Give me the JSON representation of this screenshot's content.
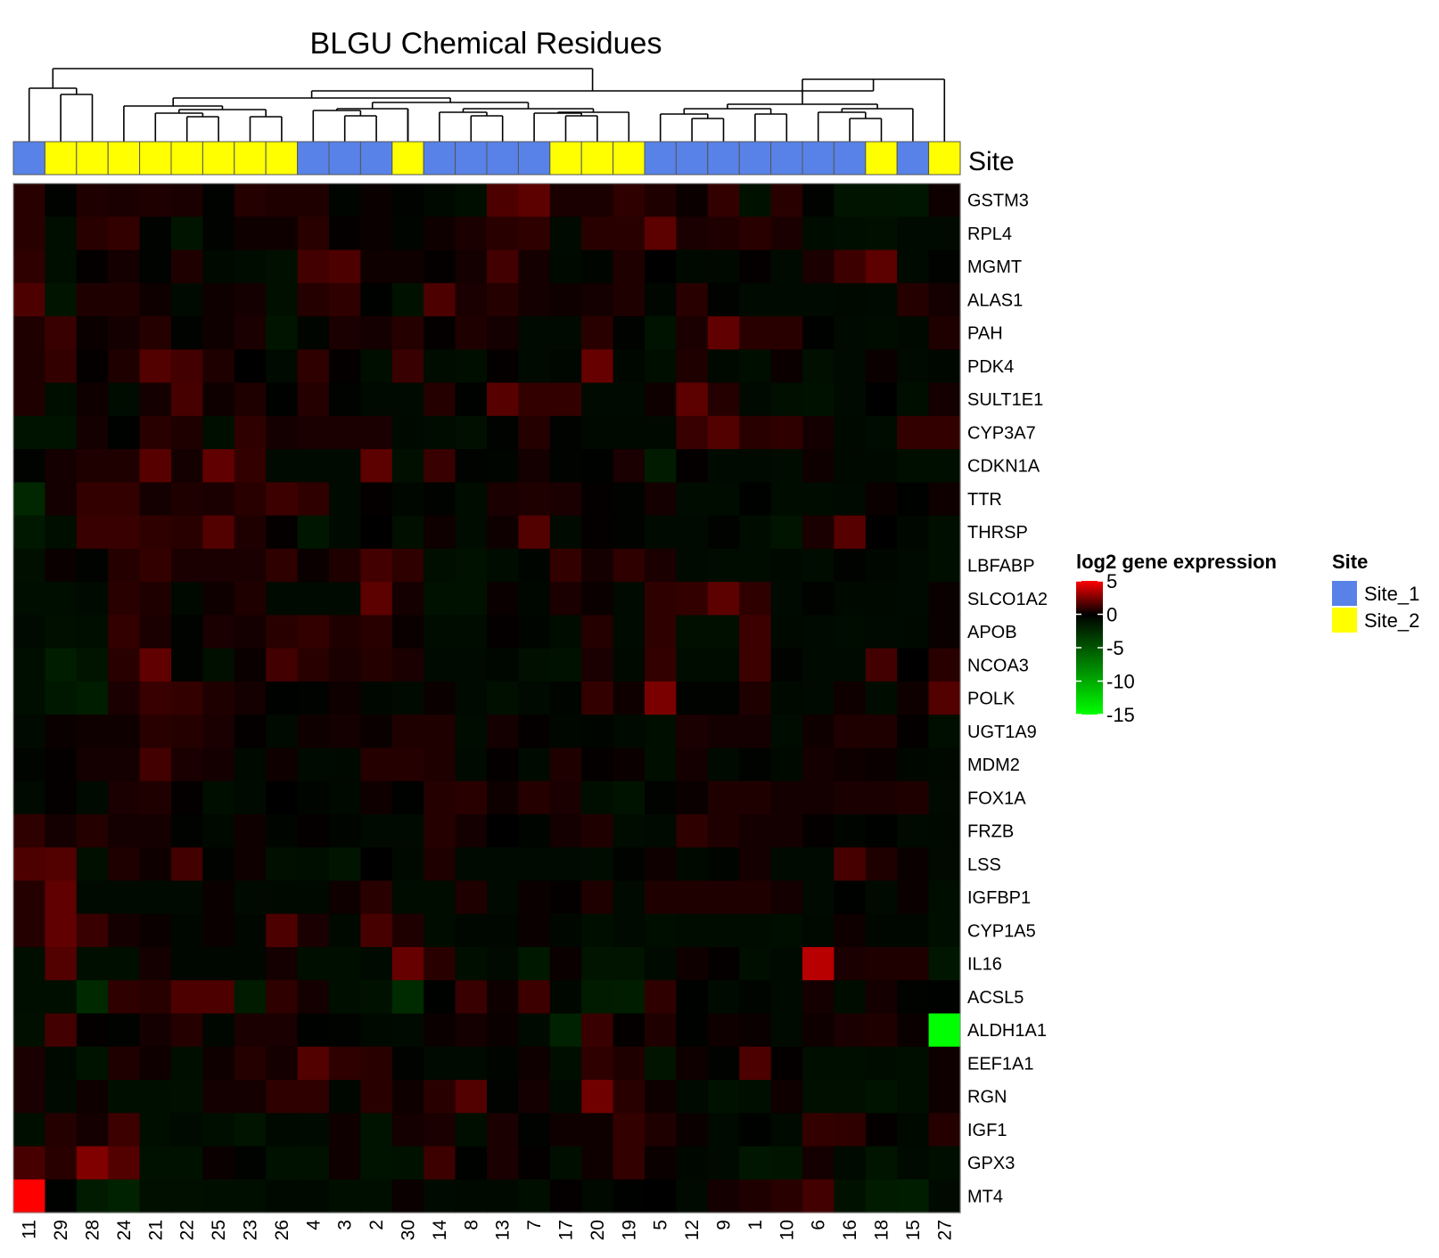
{
  "chart_data": {
    "type": "heatmap",
    "title": "BLGU Chemical Residues",
    "columns": [
      "11",
      "29",
      "28",
      "24",
      "21",
      "22",
      "25",
      "23",
      "26",
      "4",
      "3",
      "2",
      "30",
      "14",
      "8",
      "13",
      "7",
      "17",
      "20",
      "19",
      "5",
      "12",
      "9",
      "1",
      "10",
      "6",
      "16",
      "18",
      "15",
      "27"
    ],
    "column_site": [
      "Site_1",
      "Site_2",
      "Site_2",
      "Site_2",
      "Site_2",
      "Site_2",
      "Site_2",
      "Site_2",
      "Site_2",
      "Site_1",
      "Site_1",
      "Site_1",
      "Site_2",
      "Site_1",
      "Site_1",
      "Site_1",
      "Site_1",
      "Site_2",
      "Site_2",
      "Site_2",
      "Site_1",
      "Site_1",
      "Site_1",
      "Site_1",
      "Site_1",
      "Site_1",
      "Site_1",
      "Site_2",
      "Site_1",
      "Site_2"
    ],
    "rows": [
      "GSTM3",
      "RPL4",
      "MGMT",
      "ALAS1",
      "PAH",
      "PDK4",
      "SULT1E1",
      "CYP3A7",
      "CDKN1A",
      "TTR",
      "THRSP",
      "LBFABP",
      "SLCO1A2",
      "APOB",
      "NCOA3",
      "POLK",
      "UGT1A9",
      "MDM2",
      "FOX1A",
      "FRZB",
      "LSS",
      "IGFBP1",
      "CYP1A5",
      "IL16",
      "ACSL5",
      "ALDH1A1",
      "EEF1A1",
      "RGN",
      "IGF1",
      "GPX3",
      "MT4"
    ],
    "values": [
      [
        0.8,
        -0.2,
        0.6,
        0.5,
        0.6,
        0.5,
        -0.2,
        0.7,
        0.6,
        0.6,
        -0.3,
        0.2,
        -0.2,
        -0.5,
        -0.8,
        1.5,
        1.8,
        0.5,
        0.5,
        0.9,
        0.6,
        0.2,
        1.0,
        -1.0,
        0.8,
        -0.2,
        -1.2,
        -1.2,
        -1.3,
        0.3
      ],
      [
        0.8,
        -0.8,
        0.8,
        1.0,
        -0.2,
        -1.2,
        -0.2,
        0.3,
        0.3,
        0.8,
        0.1,
        0.2,
        -0.3,
        0.3,
        0.5,
        0.8,
        0.9,
        -0.6,
        0.8,
        0.8,
        1.8,
        0.5,
        0.6,
        0.8,
        0.5,
        -0.7,
        -0.8,
        -0.9,
        -0.6,
        -0.6
      ],
      [
        0.9,
        -0.8,
        0.1,
        0.4,
        -0.2,
        0.6,
        -0.5,
        -0.7,
        -0.9,
        1.3,
        1.5,
        0.3,
        0.3,
        0.1,
        0.4,
        1.3,
        0.4,
        -0.5,
        -0.3,
        0.6,
        0.0,
        -0.5,
        -0.5,
        0.1,
        -0.6,
        0.5,
        1.2,
        1.8,
        -0.6,
        -0.2
      ],
      [
        1.5,
        -1.2,
        0.6,
        0.6,
        0.3,
        -0.6,
        0.3,
        0.4,
        -0.9,
        0.7,
        0.9,
        -0.1,
        -1.0,
        1.5,
        0.5,
        0.7,
        0.4,
        0.3,
        0.4,
        0.6,
        -0.4,
        0.8,
        -0.2,
        -0.6,
        -0.6,
        -0.6,
        -0.5,
        -0.6,
        0.7,
        0.4
      ],
      [
        0.6,
        1.1,
        0.2,
        0.4,
        0.7,
        -0.2,
        0.3,
        0.5,
        -1.2,
        -0.3,
        0.5,
        0.4,
        0.7,
        0.1,
        0.6,
        0.4,
        -0.6,
        -0.6,
        0.8,
        -0.2,
        -1.1,
        0.5,
        1.9,
        0.8,
        0.8,
        -0.1,
        -0.6,
        -0.7,
        -0.5,
        0.6
      ],
      [
        0.6,
        1.0,
        0.1,
        0.6,
        1.6,
        1.3,
        0.6,
        0.0,
        -0.6,
        0.9,
        0.1,
        -0.8,
        1.1,
        -0.7,
        -0.8,
        0.1,
        -0.6,
        -0.4,
        2.0,
        -0.4,
        -0.8,
        0.6,
        -0.5,
        -0.8,
        0.2,
        -0.9,
        -0.6,
        0.2,
        -0.6,
        -0.4
      ],
      [
        0.6,
        -0.8,
        0.3,
        -0.7,
        0.4,
        1.4,
        0.3,
        0.6,
        -0.1,
        0.7,
        -0.2,
        -0.6,
        -0.6,
        0.7,
        -0.1,
        1.7,
        1.0,
        1.0,
        -0.6,
        -0.6,
        0.3,
        1.8,
        0.7,
        -0.6,
        -0.9,
        -1.0,
        -0.6,
        0.0,
        -0.8,
        0.4
      ],
      [
        -1.1,
        -1.1,
        0.4,
        -0.1,
        0.8,
        0.6,
        -0.8,
        0.9,
        0.4,
        0.5,
        0.5,
        0.5,
        -0.5,
        -0.7,
        -0.9,
        -0.2,
        0.7,
        -0.2,
        -0.5,
        -0.5,
        -0.5,
        1.1,
        1.6,
        0.8,
        0.9,
        0.4,
        -0.5,
        -0.7,
        1.0,
        1.0
      ],
      [
        -0.2,
        0.4,
        0.6,
        0.6,
        1.7,
        0.4,
        1.9,
        1.0,
        -0.6,
        -0.6,
        -0.6,
        1.8,
        -0.9,
        1.1,
        -0.2,
        -0.3,
        0.4,
        -0.2,
        -0.1,
        0.5,
        -1.6,
        0.1,
        -0.6,
        -0.6,
        -0.7,
        0.3,
        -0.5,
        -0.5,
        -0.8,
        -0.8
      ],
      [
        -2.3,
        0.4,
        1.0,
        1.0,
        0.4,
        0.6,
        0.5,
        0.8,
        1.2,
        0.9,
        -0.6,
        0.1,
        -0.4,
        -0.2,
        -0.7,
        0.5,
        0.6,
        0.5,
        0.1,
        -0.2,
        0.4,
        -0.7,
        -0.7,
        -0.1,
        -0.7,
        -0.7,
        -0.6,
        0.2,
        -0.1,
        0.3
      ],
      [
        -1.4,
        -0.8,
        1.1,
        1.1,
        0.9,
        0.8,
        1.6,
        0.6,
        0.1,
        -1.3,
        -0.6,
        0.0,
        -0.9,
        0.3,
        -0.7,
        0.3,
        1.6,
        -0.6,
        0.1,
        -0.2,
        -0.6,
        -0.6,
        -0.2,
        -0.7,
        -1.2,
        0.5,
        1.7,
        0.0,
        -0.4,
        -0.8
      ],
      [
        -0.9,
        0.2,
        -0.2,
        0.7,
        1.0,
        0.5,
        0.5,
        0.5,
        0.9,
        0.2,
        0.6,
        1.3,
        0.9,
        -0.8,
        -1.0,
        -0.7,
        -0.3,
        1.0,
        0.4,
        0.9,
        0.5,
        -0.6,
        -0.7,
        -0.7,
        -0.5,
        -0.7,
        -0.2,
        -0.4,
        -0.6,
        -0.8
      ],
      [
        -0.8,
        -0.8,
        -0.6,
        0.8,
        0.6,
        -0.5,
        0.3,
        0.6,
        -0.6,
        -0.6,
        -0.6,
        1.8,
        0.4,
        -1.0,
        -1.0,
        0.2,
        -0.4,
        0.5,
        0.2,
        -0.6,
        0.9,
        1.0,
        1.8,
        0.9,
        -0.6,
        -0.2,
        -0.5,
        -0.5,
        -0.6,
        0.2
      ],
      [
        -0.6,
        -0.9,
        -0.8,
        1.0,
        0.5,
        -0.2,
        0.5,
        0.4,
        0.8,
        1.0,
        0.6,
        0.8,
        0.2,
        -0.7,
        -0.7,
        0.1,
        -0.3,
        -0.7,
        0.7,
        -0.6,
        0.9,
        -0.9,
        -0.9,
        1.2,
        -0.5,
        -0.6,
        -0.7,
        -0.6,
        -0.5,
        0.2
      ],
      [
        -0.8,
        -1.7,
        -1.2,
        0.8,
        1.9,
        -0.2,
        -0.9,
        0.2,
        1.3,
        0.8,
        0.5,
        0.7,
        0.5,
        -0.6,
        -0.6,
        -0.4,
        -0.9,
        -1.0,
        0.5,
        -0.5,
        1.0,
        -0.7,
        -0.7,
        1.2,
        -0.2,
        -0.6,
        -0.6,
        1.3,
        0.0,
        0.8
      ],
      [
        -0.8,
        -1.4,
        -1.7,
        0.5,
        1.1,
        1.0,
        0.6,
        0.4,
        -0.1,
        -0.2,
        0.3,
        -0.4,
        -0.6,
        0.2,
        -0.6,
        -0.9,
        -0.6,
        -0.3,
        1.0,
        0.3,
        2.4,
        -0.2,
        -0.2,
        0.6,
        -0.5,
        -0.6,
        0.3,
        -0.7,
        0.3,
        1.6
      ],
      [
        -0.6,
        0.2,
        0.3,
        0.3,
        0.8,
        0.7,
        0.5,
        0.1,
        -0.6,
        0.3,
        0.4,
        0.2,
        0.6,
        0.6,
        -0.7,
        0.4,
        0.1,
        -0.4,
        -0.3,
        -0.6,
        -0.8,
        0.5,
        0.4,
        0.4,
        -0.7,
        0.3,
        0.6,
        0.6,
        0.1,
        -0.8
      ],
      [
        -0.3,
        0.1,
        0.4,
        0.4,
        1.3,
        0.5,
        0.4,
        -0.5,
        0.3,
        -0.6,
        -0.5,
        0.7,
        0.7,
        0.6,
        -0.6,
        0.1,
        -0.6,
        0.6,
        0.1,
        0.2,
        -0.8,
        0.4,
        -0.6,
        -0.2,
        -0.5,
        0.4,
        0.3,
        0.2,
        -0.4,
        -0.5
      ],
      [
        -0.6,
        0.1,
        -0.6,
        0.5,
        0.6,
        0.1,
        -0.8,
        -0.6,
        0.0,
        -0.3,
        -0.5,
        0.3,
        -0.1,
        0.7,
        0.8,
        0.3,
        0.7,
        0.5,
        -0.8,
        -1.1,
        -0.2,
        0.2,
        0.6,
        0.6,
        0.4,
        0.4,
        0.5,
        0.5,
        0.6,
        -0.6
      ],
      [
        0.9,
        0.4,
        0.7,
        0.4,
        0.4,
        -0.2,
        -0.5,
        0.3,
        -0.3,
        0.1,
        -0.3,
        -0.6,
        -0.6,
        0.7,
        0.4,
        0.0,
        -0.3,
        0.4,
        0.6,
        -0.7,
        -0.6,
        0.9,
        0.6,
        0.4,
        0.4,
        0.1,
        -0.3,
        -0.1,
        -0.6,
        -0.5
      ],
      [
        1.5,
        1.6,
        -0.9,
        0.6,
        0.3,
        1.3,
        -0.2,
        0.3,
        -0.9,
        -0.8,
        -1.2,
        0.0,
        -0.5,
        0.6,
        -0.6,
        -0.6,
        -0.6,
        -0.6,
        -0.7,
        -0.2,
        0.3,
        -0.5,
        -0.3,
        0.4,
        -0.6,
        -0.6,
        1.4,
        0.6,
        0.2,
        -0.6
      ],
      [
        0.7,
        1.9,
        -0.6,
        -0.6,
        -0.6,
        -0.6,
        0.2,
        -0.6,
        -0.5,
        -0.5,
        0.3,
        0.8,
        -0.7,
        -0.7,
        0.6,
        -0.6,
        0.2,
        0.1,
        0.6,
        -0.6,
        0.6,
        0.6,
        0.6,
        0.6,
        0.4,
        -0.6,
        -0.1,
        -0.6,
        0.2,
        -0.8
      ],
      [
        0.7,
        1.9,
        1.1,
        0.4,
        0.2,
        -0.4,
        0.2,
        -0.4,
        1.5,
        0.5,
        -0.5,
        1.4,
        0.6,
        -0.7,
        -0.4,
        -0.4,
        0.2,
        -0.4,
        -0.8,
        -0.6,
        -0.8,
        -0.7,
        -0.7,
        -0.7,
        -0.8,
        -0.5,
        0.3,
        -0.4,
        -0.4,
        -0.8
      ],
      [
        -0.8,
        1.6,
        -0.8,
        -0.8,
        0.4,
        -0.4,
        -0.4,
        -0.4,
        0.4,
        -0.8,
        -0.8,
        -0.6,
        2.0,
        0.8,
        -0.8,
        -0.6,
        -1.4,
        0.2,
        -1.2,
        -1.2,
        -0.6,
        0.3,
        0.1,
        -0.8,
        -0.6,
        3.6,
        0.5,
        0.6,
        0.6,
        -1.3
      ],
      [
        -0.8,
        -0.8,
        -2.4,
        0.9,
        0.8,
        1.5,
        1.5,
        -1.6,
        0.9,
        0.4,
        -0.8,
        -1.0,
        -2.5,
        -0.1,
        1.1,
        0.3,
        1.2,
        -0.4,
        -1.6,
        -1.7,
        0.9,
        -0.1,
        -0.6,
        -0.3,
        -0.6,
        0.4,
        -0.7,
        0.4,
        -0.2,
        -0.1
      ],
      [
        -0.9,
        1.3,
        0.1,
        -0.2,
        0.4,
        0.7,
        -0.4,
        0.5,
        0.5,
        -0.1,
        -0.2,
        -0.5,
        -0.6,
        0.2,
        0.4,
        0.2,
        -0.6,
        -2.0,
        1.1,
        0.1,
        0.6,
        -0.1,
        0.3,
        0.2,
        -0.6,
        0.3,
        0.5,
        0.6,
        0.2,
        -15.0
      ],
      [
        0.5,
        -0.5,
        -1.1,
        0.6,
        0.3,
        -0.8,
        0.3,
        0.7,
        0.4,
        1.6,
        0.9,
        0.8,
        -0.2,
        -0.6,
        -0.6,
        -0.3,
        0.3,
        -0.8,
        0.9,
        0.6,
        -1.2,
        0.3,
        -0.2,
        1.5,
        0.1,
        -0.8,
        -0.8,
        -0.7,
        -0.8,
        0.3
      ],
      [
        0.5,
        -0.6,
        0.3,
        -0.8,
        -0.8,
        -0.9,
        0.4,
        0.4,
        0.9,
        0.9,
        -0.4,
        0.8,
        0.3,
        0.8,
        1.6,
        -0.2,
        0.4,
        -0.6,
        2.2,
        0.8,
        0.3,
        -0.6,
        -1.0,
        -0.8,
        0.3,
        -0.9,
        -0.9,
        -1.1,
        -0.8,
        0.3
      ],
      [
        -0.8,
        0.7,
        0.4,
        1.2,
        -0.8,
        -0.6,
        -0.8,
        -1.2,
        -0.5,
        -0.6,
        0.3,
        -1.1,
        0.4,
        0.5,
        -0.8,
        0.5,
        -0.2,
        0.3,
        0.3,
        1.0,
        0.6,
        0.2,
        -0.6,
        -0.1,
        -0.6,
        1.0,
        0.9,
        0.1,
        -0.5,
        0.7
      ],
      [
        1.4,
        0.8,
        2.5,
        1.6,
        -1.0,
        -1.0,
        0.2,
        -0.2,
        -1.0,
        -1.0,
        0.3,
        -1.1,
        -1.0,
        1.2,
        -0.1,
        0.5,
        0.1,
        -0.8,
        0.3,
        1.0,
        0.2,
        -0.4,
        -0.6,
        -1.3,
        -1.2,
        0.4,
        -0.6,
        -1.2,
        -0.6,
        -0.8
      ],
      [
        5.0,
        -0.1,
        -1.6,
        -2.0,
        -0.9,
        -0.9,
        -0.8,
        -0.8,
        -0.5,
        -0.5,
        -0.8,
        -0.8,
        0.2,
        -0.6,
        -0.5,
        -0.5,
        -0.8,
        0.1,
        -0.5,
        -0.1,
        0.0,
        -0.6,
        0.4,
        0.6,
        0.8,
        1.3,
        -1.0,
        -1.6,
        -1.7,
        -0.6
      ]
    ],
    "color_scale": {
      "label": "log2 gene expression",
      "min": -15,
      "max": 5,
      "ticks": [
        5,
        0,
        -5,
        -10,
        -15
      ],
      "low_color": "#00ff00",
      "mid_color": "#000000",
      "high_color": "#ff0000"
    },
    "annotation": {
      "label": "Site",
      "legend_title": "Site",
      "levels": [
        {
          "name": "Site_1",
          "color": "#5882e8"
        },
        {
          "name": "Site_2",
          "color": "#ffff00"
        }
      ]
    },
    "column_dendrogram": true,
    "legend_placement": "right"
  }
}
